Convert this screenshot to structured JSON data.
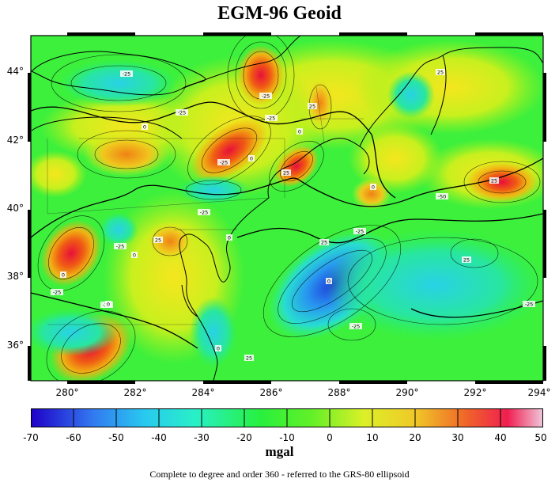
{
  "title": "EGM-96 Geoid",
  "map": {
    "lon_ticks": [
      "280°",
      "282°",
      "284°",
      "286°",
      "288°",
      "290°",
      "292°",
      "294°"
    ],
    "lat_ticks": [
      "44°",
      "42°",
      "40°",
      "38°",
      "36°"
    ],
    "contour_labels": [
      "-25",
      "-25",
      "0",
      "-25",
      "-25",
      "0",
      "-25",
      "25",
      "0",
      "25",
      "0",
      "-25",
      "25",
      "0",
      "-25",
      "0",
      "-25",
      "0",
      "-25",
      "25",
      "-50",
      "25",
      "-25",
      "25",
      "0",
      "-25",
      "-25",
      "0",
      "25",
      "0",
      "25"
    ]
  },
  "colorbar": {
    "ticks": [
      "-70",
      "-60",
      "-50",
      "-40",
      "-30",
      "-20",
      "-10",
      "0",
      "10",
      "20",
      "30",
      "40",
      "50"
    ],
    "unit": "mgal"
  },
  "caption": "Complete to degree and order 360 - referred to the GRS-80 ellipsoid",
  "colors": {
    "low": "#1e00c8",
    "mid": "#00ff3c",
    "high": "#ff0078"
  }
}
